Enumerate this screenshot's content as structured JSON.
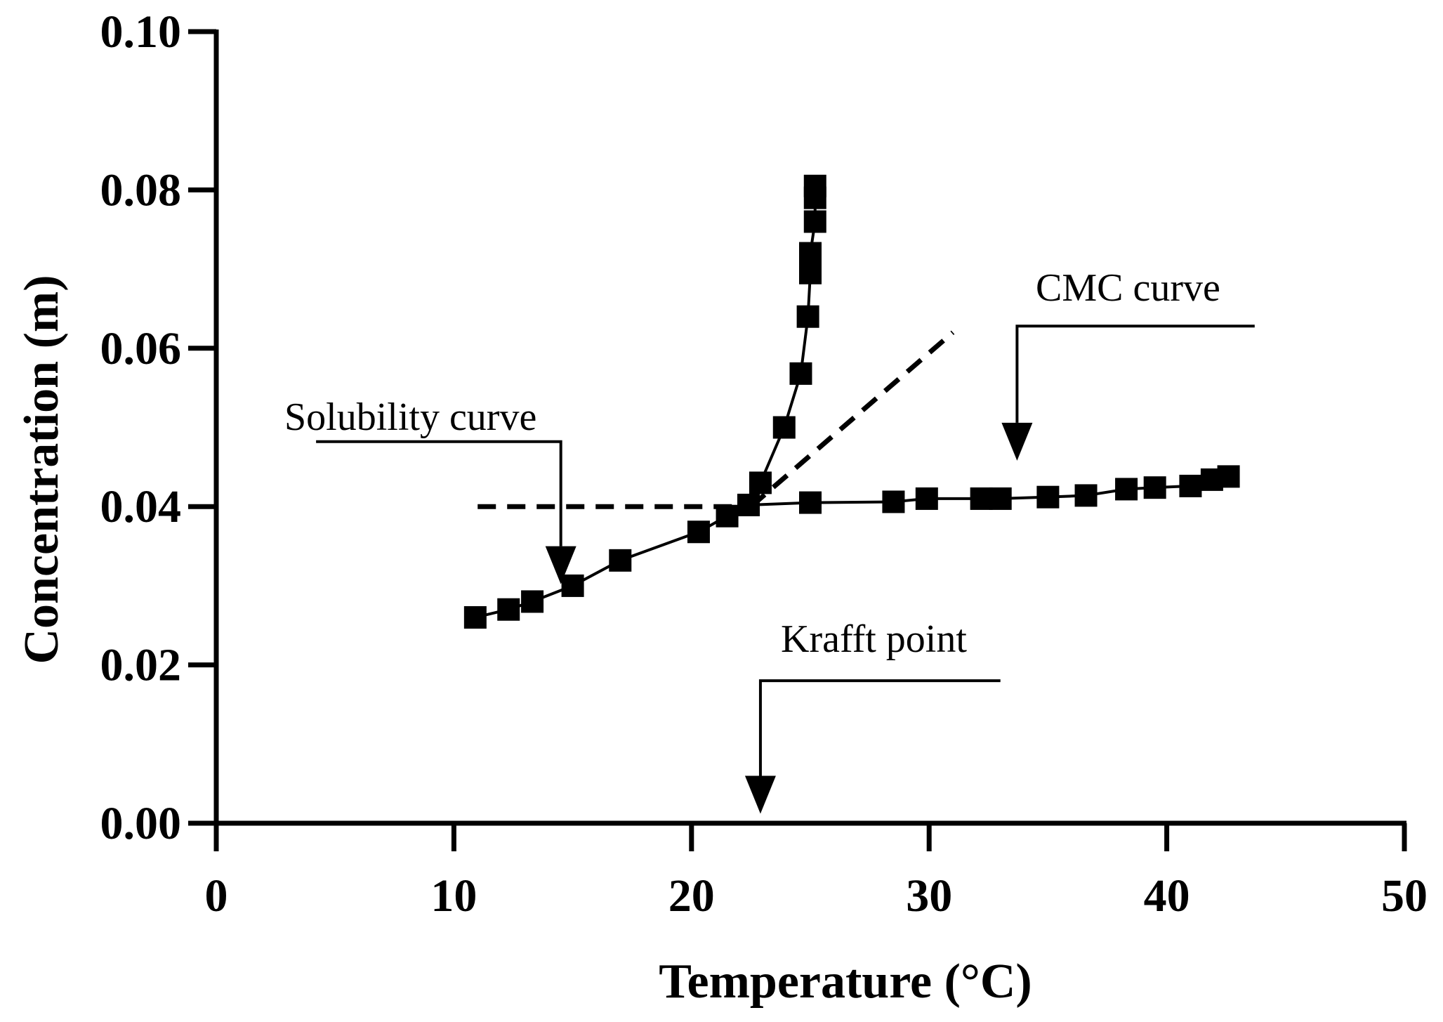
{
  "chart_data": {
    "type": "scatter",
    "title": "",
    "xlabel": "Temperature (°C)",
    "ylabel": "Concentration (m)",
    "xlim": [
      0,
      50
    ],
    "ylim": [
      0,
      0.1
    ],
    "grid": false,
    "x_ticks": [
      0,
      10,
      20,
      30,
      40,
      50
    ],
    "x_tick_labels": [
      "0",
      "10",
      "20",
      "30",
      "40",
      "50"
    ],
    "y_ticks": [
      0,
      0.02,
      0.04,
      0.06,
      0.08,
      0.1
    ],
    "y_tick_labels": [
      "0.00",
      "0.02",
      "0.04",
      "0.06",
      "0.08",
      "0.10"
    ],
    "series": [
      {
        "name": "Solubility curve",
        "marker": "square",
        "points": [
          [
            10.9,
            0.026
          ],
          [
            12.3,
            0.027
          ],
          [
            13.3,
            0.028
          ],
          [
            15.0,
            0.03
          ],
          [
            17.0,
            0.0332
          ],
          [
            20.3,
            0.0368
          ],
          [
            21.5,
            0.0388
          ],
          [
            22.4,
            0.0402
          ],
          [
            22.9,
            0.043
          ],
          [
            23.9,
            0.05
          ],
          [
            24.6,
            0.0568
          ],
          [
            24.9,
            0.064
          ],
          [
            25.0,
            0.0695
          ],
          [
            25.0,
            0.072
          ],
          [
            25.2,
            0.076
          ],
          [
            25.2,
            0.079
          ],
          [
            25.2,
            0.0805
          ]
        ]
      },
      {
        "name": "CMC curve",
        "marker": "square",
        "points": [
          [
            22.4,
            0.0402
          ],
          [
            25.0,
            0.0405
          ],
          [
            28.5,
            0.0406
          ],
          [
            29.9,
            0.041
          ],
          [
            32.2,
            0.041
          ],
          [
            33.0,
            0.041
          ],
          [
            35.0,
            0.0412
          ],
          [
            36.6,
            0.0414
          ],
          [
            38.3,
            0.0422
          ],
          [
            39.5,
            0.0424
          ],
          [
            41.0,
            0.0426
          ],
          [
            41.9,
            0.0434
          ],
          [
            42.6,
            0.0438
          ]
        ]
      }
    ],
    "reference_lines": [
      {
        "style": "dashed",
        "from": [
          11.0,
          0.04
        ],
        "to": [
          22.5,
          0.04
        ]
      },
      {
        "style": "dashed",
        "from": [
          22.5,
          0.04
        ],
        "to": [
          31.0,
          0.062
        ]
      }
    ],
    "annotations": [
      {
        "text": "Solubility curve",
        "leader_from": [
          4.2,
          0.0482
        ],
        "leader_corner": [
          14.5,
          0.0482
        ],
        "arrow_tip": [
          14.5,
          0.0302
        ]
      },
      {
        "text": "CMC curve",
        "leader_from": [
          43.7,
          0.0628
        ],
        "leader_corner": [
          33.7,
          0.0628
        ],
        "arrow_tip": [
          33.7,
          0.0458
        ]
      },
      {
        "text": "Krafft point",
        "leader_from": [
          33.0,
          0.018
        ],
        "leader_corner": [
          22.9,
          0.018
        ],
        "arrow_tip": [
          22.9,
          0.0012
        ]
      }
    ]
  }
}
